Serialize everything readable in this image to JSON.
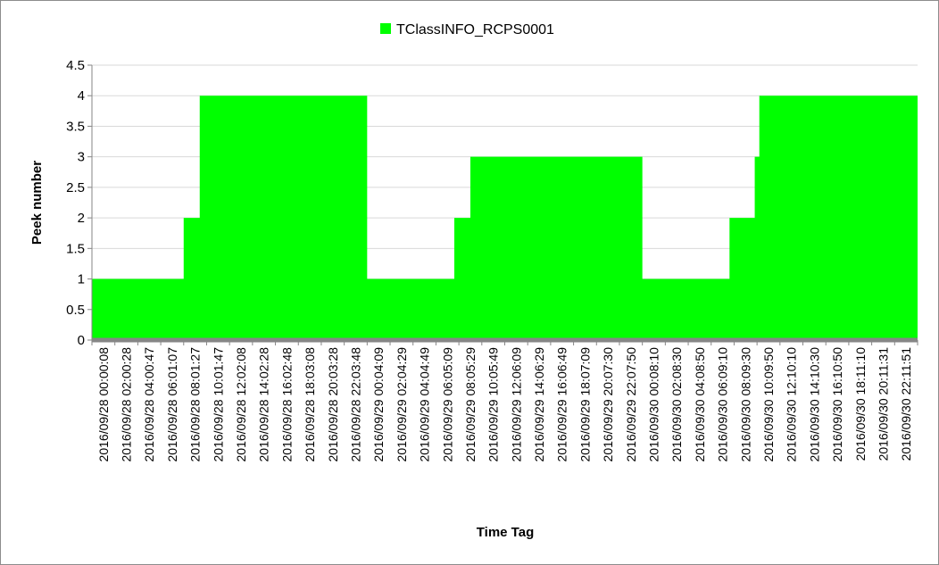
{
  "chart_data": {
    "type": "area",
    "xlabel": "Time Tag",
    "ylabel": "Peek number",
    "ylim": [
      0,
      4.5
    ],
    "y_ticks": [
      "0",
      "0.5",
      "1",
      "1.5",
      "2",
      "2.5",
      "3",
      "3.5",
      "4",
      "4.5"
    ],
    "grid": "horizontal",
    "legend_placement": "top-center",
    "colors": {
      "series": "#00ff00",
      "grid": "#d9d9d9",
      "axis": "#868686"
    },
    "categories": [
      "2016/09/28 00:00:08",
      "2016/09/28 02:00:28",
      "2016/09/28 04:00:47",
      "2016/09/28 06:01:07",
      "2016/09/28 08:01:27",
      "2016/09/28 10:01:47",
      "2016/09/28 12:02:08",
      "2016/09/28 14:02:28",
      "2016/09/28 16:02:48",
      "2016/09/28 18:03:08",
      "2016/09/28 20:03:28",
      "2016/09/28 22:03:48",
      "2016/09/29 00:04:09",
      "2016/09/29 02:04:29",
      "2016/09/29 04:04:49",
      "2016/09/29 06:05:09",
      "2016/09/29 08:05:29",
      "2016/09/29 10:05:49",
      "2016/09/29 12:06:09",
      "2016/09/29 14:06:29",
      "2016/09/29 16:06:49",
      "2016/09/29 18:07:09",
      "2016/09/29 20:07:30",
      "2016/09/29 22:07:50",
      "2016/09/30 00:08:10",
      "2016/09/30 02:08:30",
      "2016/09/30 04:08:50",
      "2016/09/30 06:09:10",
      "2016/09/30 08:09:30",
      "2016/09/30 10:09:50",
      "2016/09/30 12:10:10",
      "2016/09/30 14:10:30",
      "2016/09/30 16:10:50",
      "2016/09/30 18:11:10",
      "2016/09/30 20:11:31",
      "2016/09/30 22:11:51"
    ],
    "series": [
      {
        "name": "TClassINFO_RCPS0001",
        "steps": [
          {
            "x": 0,
            "y": 1
          },
          {
            "x": 4,
            "y": 1
          },
          {
            "x": 4,
            "y": 2
          },
          {
            "x": 4.7,
            "y": 2
          },
          {
            "x": 4.7,
            "y": 4
          },
          {
            "x": 12,
            "y": 4
          },
          {
            "x": 12,
            "y": 1
          },
          {
            "x": 15.8,
            "y": 1
          },
          {
            "x": 15.8,
            "y": 2
          },
          {
            "x": 16.5,
            "y": 2
          },
          {
            "x": 16.5,
            "y": 3
          },
          {
            "x": 24,
            "y": 3
          },
          {
            "x": 24,
            "y": 1
          },
          {
            "x": 27.8,
            "y": 1
          },
          {
            "x": 27.8,
            "y": 2
          },
          {
            "x": 28.9,
            "y": 2
          },
          {
            "x": 28.9,
            "y": 3
          },
          {
            "x": 29.1,
            "y": 3
          },
          {
            "x": 29.1,
            "y": 4
          },
          {
            "x": 36,
            "y": 4
          }
        ]
      }
    ]
  }
}
